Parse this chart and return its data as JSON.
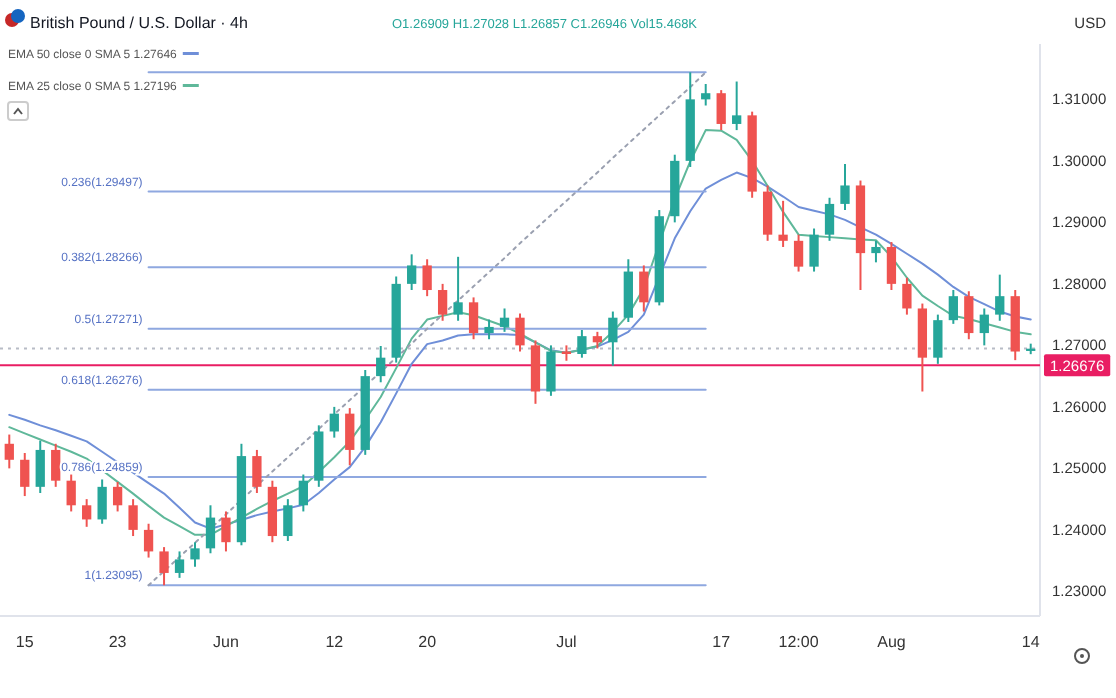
{
  "chart_data": {
    "type": "candlestick",
    "title": "British Pound / U.S. Dollar · 4h",
    "annotations": [
      "O1.26909 H1.27028 L1.26857 C1.26946 Vol15.468K",
      "USD",
      "0.236(1.29497)",
      "0.382(1.28266)",
      "0.5(1.27271)",
      "0.618(1.26276)",
      "0.786(1.24859)",
      "1(1.23095)"
    ],
    "categories": [
      null,
      "15",
      null,
      null,
      null,
      null,
      null,
      "23",
      null,
      null,
      null,
      null,
      null,
      null,
      "Jun",
      null,
      null,
      null,
      null,
      null,
      null,
      "12",
      null,
      null,
      null,
      null,
      null,
      "20",
      null,
      null,
      null,
      null,
      null,
      null,
      null,
      null,
      "Jul",
      null,
      null,
      null,
      null,
      null,
      null,
      null,
      null,
      null,
      "17",
      null,
      null,
      null,
      null,
      "12:00",
      null,
      null,
      null,
      null,
      null,
      "Aug",
      null,
      null,
      null,
      null,
      null,
      null,
      null,
      null,
      "14"
    ],
    "ohlc": [
      [
        1.254,
        1.2555,
        1.25,
        1.2514
      ],
      [
        1.2514,
        1.2525,
        1.2455,
        1.247
      ],
      [
        1.247,
        1.2545,
        1.246,
        1.253
      ],
      [
        1.253,
        1.254,
        1.247,
        1.248
      ],
      [
        1.248,
        1.249,
        1.243,
        1.244
      ],
      [
        1.244,
        1.245,
        1.2405,
        1.2417
      ],
      [
        1.2417,
        1.2482,
        1.241,
        1.247
      ],
      [
        1.247,
        1.2478,
        1.243,
        1.244
      ],
      [
        1.244,
        1.245,
        1.239,
        1.24
      ],
      [
        1.24,
        1.241,
        1.2355,
        1.2365
      ],
      [
        1.2365,
        1.2372,
        1.231,
        1.233
      ],
      [
        1.233,
        1.2365,
        1.2322,
        1.2352
      ],
      [
        1.2352,
        1.238,
        1.234,
        1.237
      ],
      [
        1.237,
        1.244,
        1.2362,
        1.242
      ],
      [
        1.242,
        1.243,
        1.2365,
        1.238
      ],
      [
        1.238,
        1.254,
        1.2375,
        1.252
      ],
      [
        1.252,
        1.253,
        1.246,
        1.247
      ],
      [
        1.247,
        1.248,
        1.238,
        1.239
      ],
      [
        1.239,
        1.245,
        1.2382,
        1.244
      ],
      [
        1.244,
        1.249,
        1.243,
        1.248
      ],
      [
        1.248,
        1.257,
        1.247,
        1.256
      ],
      [
        1.256,
        1.26,
        1.255,
        1.2589
      ],
      [
        1.2589,
        1.2598,
        1.2505,
        1.253
      ],
      [
        1.253,
        1.266,
        1.2522,
        1.265
      ],
      [
        1.265,
        1.2699,
        1.264,
        1.268
      ],
      [
        1.268,
        1.2812,
        1.2672,
        1.28
      ],
      [
        1.28,
        1.2848,
        1.279,
        1.283
      ],
      [
        1.283,
        1.284,
        1.278,
        1.279
      ],
      [
        1.279,
        1.28,
        1.274,
        1.275
      ],
      [
        1.275,
        1.2844,
        1.274,
        1.277
      ],
      [
        1.277,
        1.2778,
        1.271,
        1.272
      ],
      [
        1.272,
        1.2742,
        1.271,
        1.273
      ],
      [
        1.273,
        1.276,
        1.2722,
        1.2745
      ],
      [
        1.2745,
        1.2752,
        1.269,
        1.27
      ],
      [
        1.27,
        1.2708,
        1.2605,
        1.2625
      ],
      [
        1.2625,
        1.27,
        1.2618,
        1.269
      ],
      [
        1.269,
        1.27,
        1.2675,
        1.2686
      ],
      [
        1.2686,
        1.2725,
        1.268,
        1.2715
      ],
      [
        1.2715,
        1.2722,
        1.2695,
        1.2705
      ],
      [
        1.2705,
        1.2755,
        1.2667,
        1.2745
      ],
      [
        1.2745,
        1.284,
        1.2738,
        1.282
      ],
      [
        1.282,
        1.283,
        1.2755,
        1.277
      ],
      [
        1.277,
        1.292,
        1.2765,
        1.291
      ],
      [
        1.291,
        1.301,
        1.29,
        1.3
      ],
      [
        1.3,
        1.3144,
        1.299,
        1.31
      ],
      [
        1.31,
        1.3125,
        1.309,
        1.311
      ],
      [
        1.311,
        1.3115,
        1.305,
        1.306
      ],
      [
        1.306,
        1.3129,
        1.305,
        1.3074
      ],
      [
        1.3074,
        1.308,
        1.294,
        1.295
      ],
      [
        1.295,
        1.296,
        1.287,
        1.288
      ],
      [
        1.288,
        1.2935,
        1.286,
        1.287
      ],
      [
        1.287,
        1.288,
        1.282,
        1.2828
      ],
      [
        1.2828,
        1.289,
        1.282,
        1.288
      ],
      [
        1.288,
        1.294,
        1.287,
        1.293
      ],
      [
        1.293,
        1.2995,
        1.292,
        1.296
      ],
      [
        1.296,
        1.2968,
        1.279,
        1.285
      ],
      [
        1.285,
        1.287,
        1.2835,
        1.286
      ],
      [
        1.286,
        1.2868,
        1.279,
        1.28
      ],
      [
        1.28,
        1.281,
        1.275,
        1.276
      ],
      [
        1.276,
        1.2768,
        1.2625,
        1.268
      ],
      [
        1.268,
        1.275,
        1.267,
        1.2741
      ],
      [
        1.2741,
        1.279,
        1.2735,
        1.278
      ],
      [
        1.278,
        1.2788,
        1.271,
        1.272
      ],
      [
        1.272,
        1.276,
        1.27,
        1.275
      ],
      [
        1.275,
        1.2815,
        1.274,
        1.278
      ],
      [
        1.278,
        1.279,
        1.2676,
        1.269
      ],
      [
        1.26909,
        1.27028,
        1.26857,
        1.26946
      ]
    ],
    "series": [
      {
        "type": "line",
        "name": "EMA 50 close 0 SMA 5 1.27646",
        "color": "#6f8fd8",
        "values": [
          1.2587,
          1.2579,
          1.257,
          1.2562,
          1.2553,
          1.2544,
          1.2527,
          1.251,
          1.2493,
          1.2476,
          1.2459,
          1.2436,
          1.2412,
          1.2402,
          1.2409,
          1.2416,
          1.2424,
          1.243,
          1.2435,
          1.2441,
          1.246,
          1.2482,
          1.2502,
          1.2535,
          1.2575,
          1.2622,
          1.267,
          1.2702,
          1.2708,
          1.2716,
          1.2718,
          1.2718,
          1.2718,
          1.2717,
          1.2705,
          1.2692,
          1.2688,
          1.2693,
          1.2698,
          1.2709,
          1.2722,
          1.275,
          1.2812,
          1.2874,
          1.2918,
          1.2955,
          1.2969,
          1.2981,
          1.2972,
          1.2958,
          1.2942,
          1.2925,
          1.2919,
          1.2913,
          1.2904,
          1.2892,
          1.288,
          1.2865,
          1.2849,
          1.2833,
          1.2815,
          1.2795,
          1.2779,
          1.2767,
          1.2755,
          1.2747,
          1.2742
        ]
      },
      {
        "type": "line",
        "name": "EMA 25 close 0 SMA 5 1.27196",
        "color": "#5fb89a",
        "values": [
          1.2567,
          1.2557,
          1.2547,
          1.2537,
          1.2527,
          1.2516,
          1.2497,
          1.2478,
          1.2459,
          1.2439,
          1.242,
          1.2406,
          1.2392,
          1.2392,
          1.2406,
          1.242,
          1.2434,
          1.2447,
          1.2459,
          1.2471,
          1.2494,
          1.2518,
          1.2544,
          1.2579,
          1.2616,
          1.2663,
          1.2711,
          1.2742,
          1.2748,
          1.2754,
          1.2749,
          1.274,
          1.2731,
          1.2719,
          1.2705,
          1.2691,
          1.2688,
          1.2693,
          1.2699,
          1.2722,
          1.275,
          1.2793,
          1.2866,
          1.2938,
          1.2999,
          1.305,
          1.3049,
          1.3034,
          1.3,
          1.2959,
          1.2917,
          1.288,
          1.2878,
          1.2876,
          1.2874,
          1.2872,
          1.2871,
          1.2844,
          1.281,
          1.2781,
          1.2764,
          1.2748,
          1.2743,
          1.2736,
          1.2729,
          1.2722,
          1.2718
        ]
      },
      {
        "type": "line",
        "color": "#8fa8e0",
        "values": [
          null,
          null,
          null,
          null,
          null,
          null,
          null,
          null,
          null,
          1.3144,
          1.3144,
          1.3144,
          1.3144,
          1.3144,
          1.3144,
          1.3144,
          1.3144,
          1.3144,
          1.3144,
          1.3144,
          1.3144,
          1.3144,
          1.3144,
          1.3144,
          1.3144,
          1.3144,
          1.3144,
          1.3144,
          1.3144,
          1.3144,
          1.3144,
          1.3144,
          1.3144,
          1.3144,
          1.3144,
          1.3144,
          1.3144,
          1.3144,
          1.3144,
          1.3144,
          1.3144,
          1.3144,
          1.3144,
          1.3144,
          1.3144,
          1.3144,
          null,
          null,
          null,
          null,
          null,
          null,
          null,
          null,
          null,
          null,
          null,
          null,
          null,
          null,
          null,
          null,
          null,
          null,
          null,
          null,
          null
        ]
      },
      {
        "type": "line",
        "color": "#8fa8e0",
        "values": [
          null,
          null,
          null,
          null,
          null,
          null,
          null,
          null,
          null,
          1.295,
          1.295,
          1.295,
          1.295,
          1.295,
          1.295,
          1.295,
          1.295,
          1.295,
          1.295,
          1.295,
          1.295,
          1.295,
          1.295,
          1.295,
          1.295,
          1.295,
          1.295,
          1.295,
          1.295,
          1.295,
          1.295,
          1.295,
          1.295,
          1.295,
          1.295,
          1.295,
          1.295,
          1.295,
          1.295,
          1.295,
          1.295,
          1.295,
          1.295,
          1.295,
          1.295,
          1.295,
          null,
          null,
          null,
          null,
          null,
          null,
          null,
          null,
          null,
          null,
          null,
          null,
          null,
          null,
          null,
          null,
          null,
          null,
          null,
          null,
          null
        ]
      },
      {
        "type": "line",
        "color": "#8fa8e0",
        "values": [
          null,
          null,
          null,
          null,
          null,
          null,
          null,
          null,
          null,
          1.2827,
          1.2827,
          1.2827,
          1.2827,
          1.2827,
          1.2827,
          1.2827,
          1.2827,
          1.2827,
          1.2827,
          1.2827,
          1.2827,
          1.2827,
          1.2827,
          1.2827,
          1.2827,
          1.2827,
          1.2827,
          1.2827,
          1.2827,
          1.2827,
          1.2827,
          1.2827,
          1.2827,
          1.2827,
          1.2827,
          1.2827,
          1.2827,
          1.2827,
          1.2827,
          1.2827,
          1.2827,
          1.2827,
          1.2827,
          1.2827,
          1.2827,
          1.2827,
          null,
          null,
          null,
          null,
          null,
          null,
          null,
          null,
          null,
          null,
          null,
          null,
          null,
          null,
          null,
          null,
          null,
          null,
          null,
          null,
          null
        ]
      },
      {
        "type": "line",
        "color": "#8fa8e0",
        "values": [
          null,
          null,
          null,
          null,
          null,
          null,
          null,
          null,
          null,
          1.2727,
          1.2727,
          1.2727,
          1.2727,
          1.2727,
          1.2727,
          1.2727,
          1.2727,
          1.2727,
          1.2727,
          1.2727,
          1.2727,
          1.2727,
          1.2727,
          1.2727,
          1.2727,
          1.2727,
          1.2727,
          1.2727,
          1.2727,
          1.2727,
          1.2727,
          1.2727,
          1.2727,
          1.2727,
          1.2727,
          1.2727,
          1.2727,
          1.2727,
          1.2727,
          1.2727,
          1.2727,
          1.2727,
          1.2727,
          1.2727,
          1.2727,
          1.2727,
          null,
          null,
          null,
          null,
          null,
          null,
          null,
          null,
          null,
          null,
          null,
          null,
          null,
          null,
          null,
          null,
          null,
          null,
          null,
          null,
          null
        ]
      },
      {
        "type": "line",
        "color": "#8fa8e0",
        "values": [
          null,
          null,
          null,
          null,
          null,
          null,
          null,
          null,
          null,
          1.2628,
          1.2628,
          1.2628,
          1.2628,
          1.2628,
          1.2628,
          1.2628,
          1.2628,
          1.2628,
          1.2628,
          1.2628,
          1.2628,
          1.2628,
          1.2628,
          1.2628,
          1.2628,
          1.2628,
          1.2628,
          1.2628,
          1.2628,
          1.2628,
          1.2628,
          1.2628,
          1.2628,
          1.2628,
          1.2628,
          1.2628,
          1.2628,
          1.2628,
          1.2628,
          1.2628,
          1.2628,
          1.2628,
          1.2628,
          1.2628,
          1.2628,
          1.2628,
          null,
          null,
          null,
          null,
          null,
          null,
          null,
          null,
          null,
          null,
          null,
          null,
          null,
          null,
          null,
          null,
          null,
          null,
          null,
          null,
          null
        ]
      },
      {
        "type": "line",
        "color": "#8fa8e0",
        "values": [
          null,
          null,
          null,
          null,
          null,
          null,
          null,
          null,
          null,
          1.2486,
          1.2486,
          1.2486,
          1.2486,
          1.2486,
          1.2486,
          1.2486,
          1.2486,
          1.2486,
          1.2486,
          1.2486,
          1.2486,
          1.2486,
          1.2486,
          1.2486,
          1.2486,
          1.2486,
          1.2486,
          1.2486,
          1.2486,
          1.2486,
          1.2486,
          1.2486,
          1.2486,
          1.2486,
          1.2486,
          1.2486,
          1.2486,
          1.2486,
          1.2486,
          1.2486,
          1.2486,
          1.2486,
          1.2486,
          1.2486,
          1.2486,
          1.2486,
          null,
          null,
          null,
          null,
          null,
          null,
          null,
          null,
          null,
          null,
          null,
          null,
          null,
          null,
          null,
          null,
          null,
          null,
          null,
          null,
          null
        ]
      },
      {
        "type": "line",
        "color": "#8fa8e0",
        "values": [
          null,
          null,
          null,
          null,
          null,
          null,
          null,
          null,
          null,
          1.231,
          1.231,
          1.231,
          1.231,
          1.231,
          1.231,
          1.231,
          1.231,
          1.231,
          1.231,
          1.231,
          1.231,
          1.231,
          1.231,
          1.231,
          1.231,
          1.231,
          1.231,
          1.231,
          1.231,
          1.231,
          1.231,
          1.231,
          1.231,
          1.231,
          1.231,
          1.231,
          1.231,
          1.231,
          1.231,
          1.231,
          1.231,
          1.231,
          1.231,
          1.231,
          1.231,
          1.231,
          null,
          null,
          null,
          null,
          null,
          null,
          null,
          null,
          null,
          null,
          null,
          null,
          null,
          null,
          null,
          null,
          null,
          null,
          null,
          null,
          null
        ]
      },
      {
        "type": "line",
        "color": "#9aa0b0",
        "line_style": "dotted",
        "values": [
          null,
          null,
          null,
          null,
          null,
          null,
          null,
          null,
          null,
          1.231,
          1.2333,
          1.2356,
          1.2379,
          1.2402,
          1.2425,
          1.2449,
          1.2472,
          1.2495,
          1.2518,
          1.2541,
          1.2564,
          1.2588,
          1.2611,
          1.2634,
          1.2657,
          1.268,
          1.2703,
          1.2727,
          1.275,
          1.2773,
          1.2796,
          1.2819,
          1.2842,
          1.2866,
          1.2889,
          1.2912,
          1.2935,
          1.2958,
          1.2981,
          1.3005,
          1.3028,
          1.3051,
          1.3074,
          1.3097,
          1.312,
          1.3144,
          null,
          null,
          null,
          null,
          null,
          null,
          null,
          null,
          null,
          null,
          null,
          null,
          null,
          null,
          null,
          null,
          null,
          null,
          null,
          null,
          null
        ]
      }
    ],
    "ref_lines": [
      {
        "axis": "y",
        "value": 1.2695,
        "color": "#b8bcc6",
        "line_style": "dotted"
      },
      {
        "axis": "y",
        "value": 1.26676,
        "label": "1.26676",
        "color": "#e91e63"
      }
    ],
    "ylim": [
      1.226,
      1.319
    ],
    "yticks": [
      {
        "value": 1.23,
        "label": "1.23000"
      },
      {
        "value": 1.24,
        "label": "1.24000"
      },
      {
        "value": 1.25,
        "label": "1.25000"
      },
      {
        "value": 1.26,
        "label": "1.26000"
      },
      {
        "value": 1.27,
        "label": "1.27000"
      },
      {
        "value": 1.28,
        "label": "1.28000"
      },
      {
        "value": 1.29,
        "label": "1.29000"
      },
      {
        "value": 1.3,
        "label": "1.30000"
      },
      {
        "value": 1.31,
        "label": "1.31000"
      }
    ],
    "legend": "top left"
  }
}
